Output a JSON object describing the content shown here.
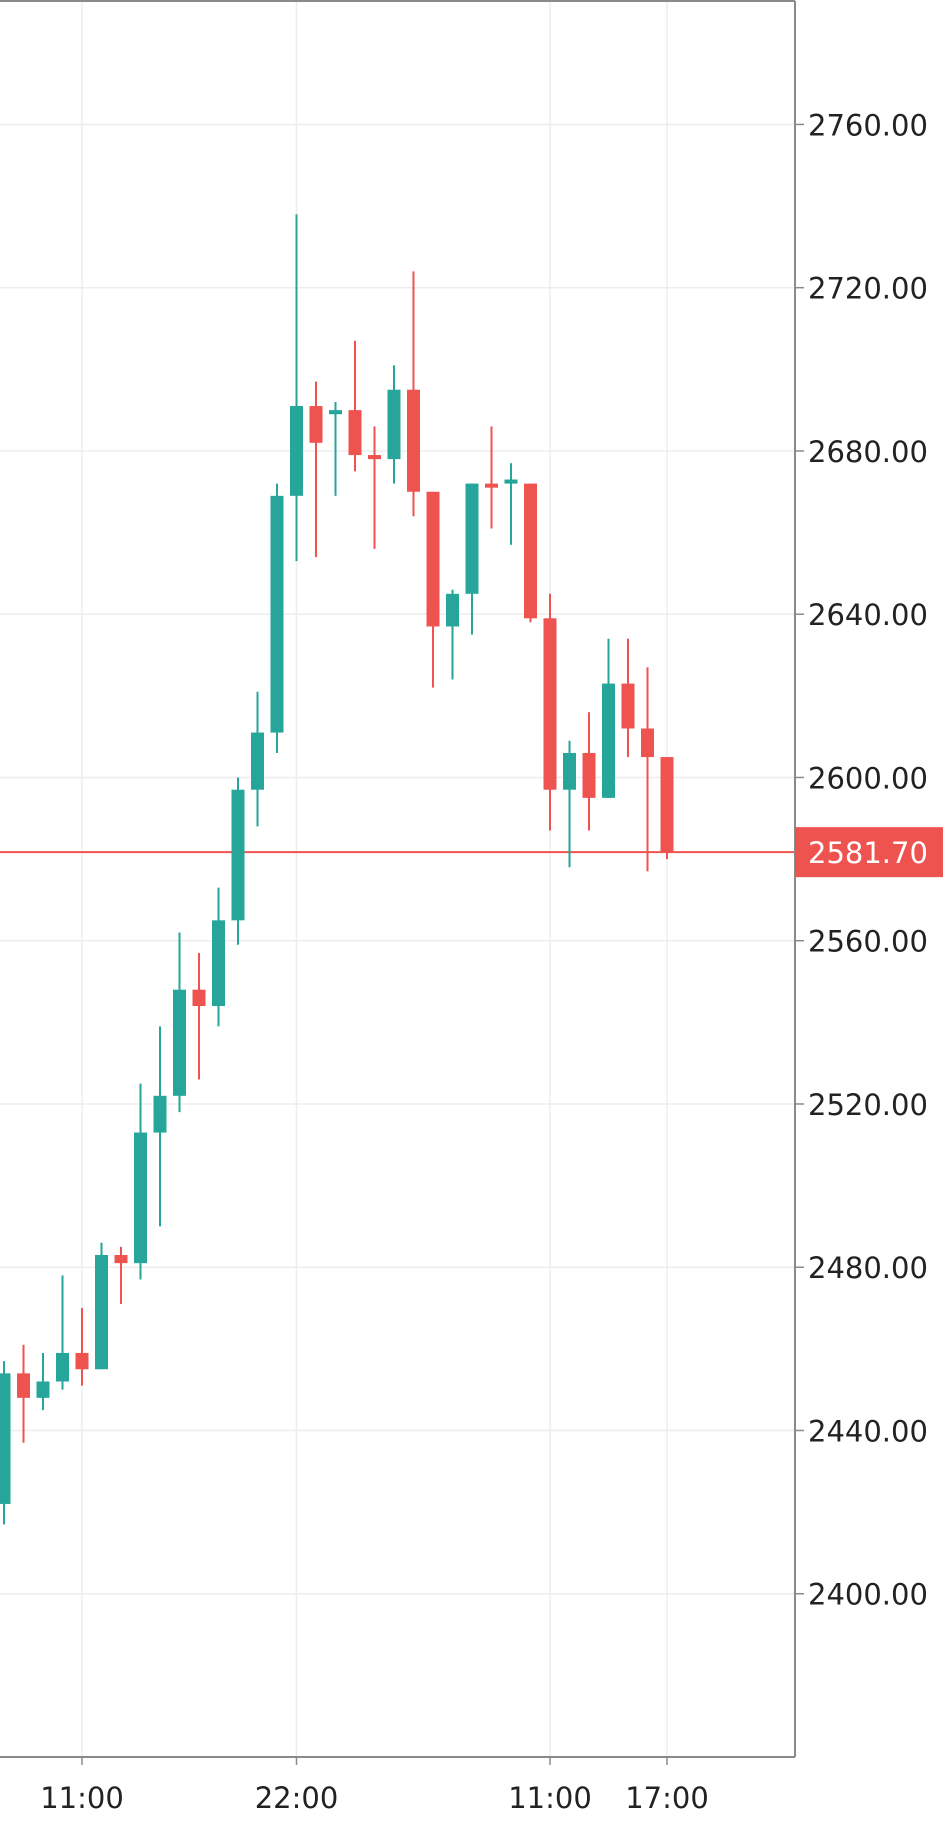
{
  "chart_data": {
    "type": "candlestick",
    "title": "",
    "xlabel": "",
    "ylabel": "",
    "ylim": [
      2360,
      2790
    ],
    "y_ticks": [
      "2760.00",
      "2720.00",
      "2680.00",
      "2640.00",
      "2600.00",
      "2560.00",
      "2520.00",
      "2480.00",
      "2440.00",
      "2400.00"
    ],
    "y_tick_values": [
      2760,
      2720,
      2680,
      2640,
      2600,
      2560,
      2520,
      2480,
      2440,
      2400
    ],
    "x_ticks": [
      "11:00",
      "22:00",
      "11:00",
      "17:00"
    ],
    "x_tick_candle_index": [
      4,
      15,
      28,
      34
    ],
    "grid": true,
    "last_price": 2581.7,
    "last_price_label": "2581.70",
    "colors": {
      "up": "#26a69a",
      "down": "#ef5350",
      "grid": "#ededed",
      "axis": "#8a8a8a",
      "text": "#222222"
    },
    "candles": [
      {
        "o": 2422,
        "h": 2457,
        "l": 2417,
        "c": 2454
      },
      {
        "o": 2454,
        "h": 2461,
        "l": 2437,
        "c": 2448
      },
      {
        "o": 2448,
        "h": 2459,
        "l": 2445,
        "c": 2452
      },
      {
        "o": 2452,
        "h": 2478,
        "l": 2450,
        "c": 2459
      },
      {
        "o": 2459,
        "h": 2470,
        "l": 2451,
        "c": 2455
      },
      {
        "o": 2455,
        "h": 2486,
        "l": 2455,
        "c": 2483
      },
      {
        "o": 2483,
        "h": 2485,
        "l": 2471,
        "c": 2481
      },
      {
        "o": 2481,
        "h": 2525,
        "l": 2477,
        "c": 2513
      },
      {
        "o": 2513,
        "h": 2539,
        "l": 2490,
        "c": 2522
      },
      {
        "o": 2522,
        "h": 2562,
        "l": 2518,
        "c": 2548
      },
      {
        "o": 2548,
        "h": 2557,
        "l": 2526,
        "c": 2544
      },
      {
        "o": 2544,
        "h": 2573,
        "l": 2539,
        "c": 2565
      },
      {
        "o": 2565,
        "h": 2600,
        "l": 2559,
        "c": 2597
      },
      {
        "o": 2597,
        "h": 2621,
        "l": 2588,
        "c": 2611
      },
      {
        "o": 2611,
        "h": 2672,
        "l": 2606,
        "c": 2669
      },
      {
        "o": 2669,
        "h": 2738,
        "l": 2653,
        "c": 2691
      },
      {
        "o": 2691,
        "h": 2697,
        "l": 2654,
        "c": 2682
      },
      {
        "o": 2689,
        "h": 2692,
        "l": 2669,
        "c": 2690
      },
      {
        "o": 2690,
        "h": 2707,
        "l": 2675,
        "c": 2679
      },
      {
        "o": 2679,
        "h": 2686,
        "l": 2656,
        "c": 2678
      },
      {
        "o": 2678,
        "h": 2701,
        "l": 2672,
        "c": 2695
      },
      {
        "o": 2695,
        "h": 2724,
        "l": 2664,
        "c": 2670
      },
      {
        "o": 2670,
        "h": 2670,
        "l": 2622,
        "c": 2637
      },
      {
        "o": 2637,
        "h": 2646,
        "l": 2624,
        "c": 2645
      },
      {
        "o": 2645,
        "h": 2672,
        "l": 2635,
        "c": 2672
      },
      {
        "o": 2672,
        "h": 2686,
        "l": 2661,
        "c": 2671
      },
      {
        "o": 2672,
        "h": 2677,
        "l": 2657,
        "c": 2673
      },
      {
        "o": 2672,
        "h": 2672,
        "l": 2638,
        "c": 2639
      },
      {
        "o": 2639,
        "h": 2645,
        "l": 2587,
        "c": 2597
      },
      {
        "o": 2597,
        "h": 2609,
        "l": 2578,
        "c": 2606
      },
      {
        "o": 2606,
        "h": 2616,
        "l": 2587,
        "c": 2595
      },
      {
        "o": 2595,
        "h": 2634,
        "l": 2595,
        "c": 2623
      },
      {
        "o": 2623,
        "h": 2634,
        "l": 2605,
        "c": 2612
      },
      {
        "o": 2612,
        "h": 2627,
        "l": 2577,
        "c": 2605
      },
      {
        "o": 2605,
        "h": 2605,
        "l": 2580,
        "c": 2581.7
      }
    ]
  }
}
